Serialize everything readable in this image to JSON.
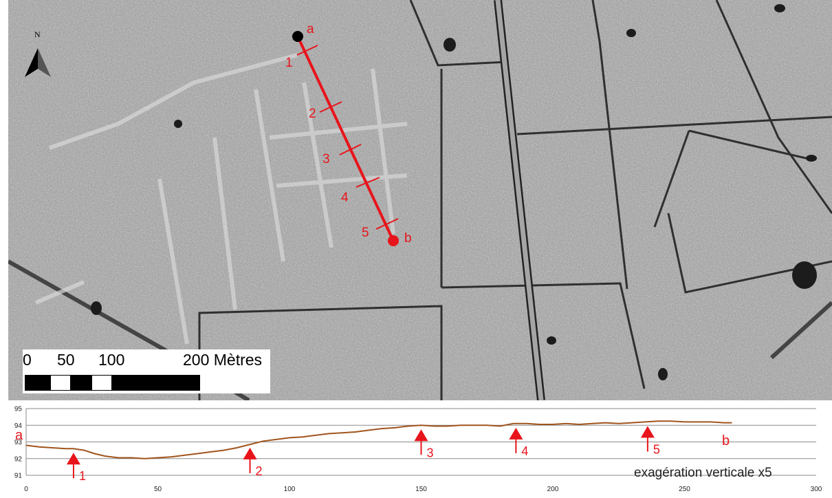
{
  "map": {
    "north_label": "N",
    "transect": {
      "start_label": "a",
      "end_label": "b",
      "tick_labels": [
        "1",
        "2",
        "3",
        "4",
        "5"
      ],
      "line_color": "#e8141b",
      "start_marker_color": "#000000",
      "end_marker_color": "#e8141b"
    },
    "scale_bar": {
      "labels": [
        "0",
        "50",
        "100",
        "200 Mètres"
      ]
    }
  },
  "profile": {
    "y_ticks": [
      "95",
      "94",
      "93",
      "92",
      "91"
    ],
    "x_ticks": [
      "0",
      "50",
      "100",
      "150",
      "200",
      "250",
      "300"
    ],
    "start_label": "a",
    "end_label": "b",
    "markers": [
      {
        "label": "1",
        "x": 18,
        "y": 92.6
      },
      {
        "label": "2",
        "x": 85,
        "y": 92.9
      },
      {
        "label": "3",
        "x": 150,
        "y": 94.0
      },
      {
        "label": "4",
        "x": 186,
        "y": 94.1
      },
      {
        "label": "5",
        "x": 236,
        "y": 94.2
      }
    ],
    "annotation": "exagération verticale x5",
    "line_color": "#a0541c",
    "marker_color": "#e8141b",
    "xlim": [
      0,
      300
    ],
    "ylim": [
      91,
      95
    ]
  },
  "chart_data": {
    "type": "line",
    "title": "",
    "xlabel": "",
    "ylabel": "",
    "xlim": [
      0,
      300
    ],
    "ylim": [
      91,
      95
    ],
    "grid": true,
    "x": [
      0,
      5,
      10,
      15,
      18,
      22,
      26,
      30,
      35,
      40,
      45,
      50,
      55,
      60,
      65,
      70,
      75,
      80,
      85,
      90,
      95,
      100,
      105,
      110,
      115,
      120,
      125,
      130,
      135,
      140,
      145,
      150,
      155,
      160,
      165,
      170,
      175,
      180,
      185,
      190,
      195,
      200,
      205,
      210,
      215,
      220,
      225,
      230,
      235,
      240,
      245,
      250,
      255,
      260,
      265,
      268
    ],
    "series": [
      {
        "values": [
          92.8,
          92.7,
          92.65,
          92.6,
          92.6,
          92.5,
          92.3,
          92.15,
          92.05,
          92.05,
          92.0,
          92.05,
          92.1,
          92.2,
          92.3,
          92.4,
          92.5,
          92.65,
          92.85,
          93.05,
          93.15,
          93.25,
          93.3,
          93.4,
          93.5,
          93.55,
          93.6,
          93.7,
          93.8,
          93.85,
          93.95,
          94.0,
          93.95,
          93.95,
          94.0,
          94.0,
          94.0,
          93.95,
          94.1,
          94.1,
          94.05,
          94.05,
          94.1,
          94.05,
          94.1,
          94.15,
          94.1,
          94.15,
          94.2,
          94.25,
          94.25,
          94.2,
          94.2,
          94.2,
          94.15,
          94.15
        ]
      }
    ]
  }
}
